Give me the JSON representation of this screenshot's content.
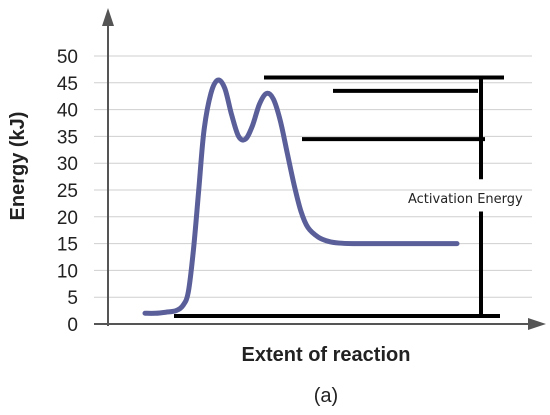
{
  "chart_data": {
    "type": "line",
    "xlabel": "Extent of reaction",
    "ylabel": "Energy (kJ)",
    "ylim": [
      0,
      50
    ],
    "yticks": [
      0,
      5,
      10,
      15,
      20,
      25,
      30,
      35,
      40,
      45,
      50
    ],
    "grid": "horizontal",
    "x_ticks_shown": false,
    "series": [
      {
        "color": "#5a5f9a",
        "x": [
          0,
          3,
          6,
          9,
          11,
          12.5,
          14,
          15.5,
          17,
          19,
          21,
          23,
          25,
          27,
          29,
          31,
          33,
          35,
          37,
          39,
          41,
          43,
          45,
          47,
          50,
          53,
          56,
          60,
          65,
          70,
          75,
          80,
          85,
          90
        ],
        "y": [
          2,
          2,
          2.2,
          2.5,
          3.5,
          6,
          14,
          25,
          36,
          43,
          45.5,
          44,
          39,
          35,
          34.5,
          37,
          41,
          43,
          42,
          38,
          32,
          26,
          21,
          18,
          16.2,
          15.4,
          15.1,
          15,
          15,
          15,
          15,
          15,
          15,
          15
        ]
      }
    ],
    "annotations": [
      {
        "text": "Activation Energy"
      }
    ],
    "caption": "(a)"
  },
  "colors": {
    "curve": "#5a5f9a",
    "axis": "#555555",
    "grid": "#cfcfcf",
    "reference_lines": "#000000"
  }
}
